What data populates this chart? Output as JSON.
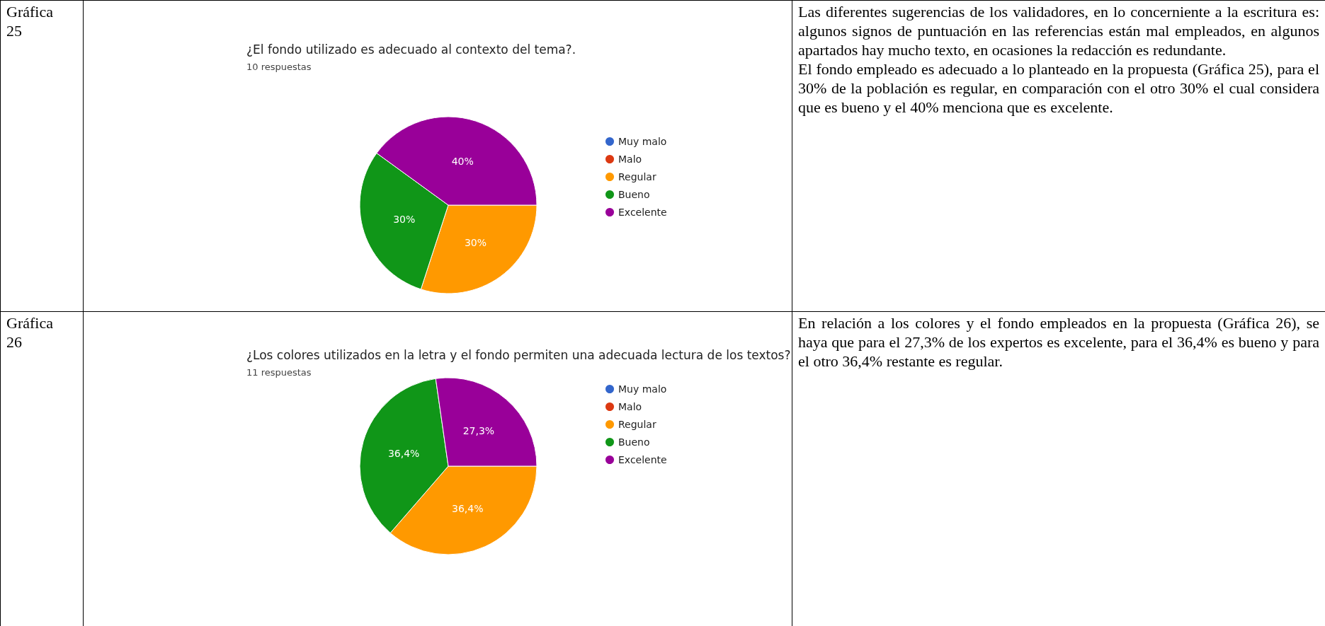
{
  "chart_data": [
    {
      "type": "other",
      "annotations": [
        "Gráfica 25"
      ]
    },
    {
      "type": "pie",
      "title": "¿El fondo utilizado es adecuado al contexto del tema?.",
      "subtitle": "10 respuestas",
      "categories": [
        "Muy malo",
        "Malo",
        "Regular",
        "Bueno",
        "Excelente"
      ],
      "values": [
        0,
        0,
        30,
        30,
        40
      ],
      "colors": [
        "#3366cc",
        "#dc3912",
        "#ff9900",
        "#109618",
        "#990099"
      ],
      "value_labels": [
        null,
        null,
        "30%",
        "30%",
        "40%"
      ],
      "legend": "right"
    },
    {
      "type": "other",
      "annotations": [
        "Las diferentes sugerencias de los validadores, en lo concerniente a la escritura es: algunos signos de puntuación en las referencias están mal empleados, en algunos apartados hay mucho texto, en ocasiones la redacción es redundante.",
        "El fondo empleado es adecuado a lo planteado en la propuesta (Gráfica 25), para el 30% de la población es regular, en comparación con el otro 30% el cual considera que es bueno y el 40% menciona que es excelente."
      ]
    },
    {
      "type": "other",
      "annotations": [
        "Gráfica 26"
      ]
    },
    {
      "type": "pie",
      "title": "¿Los colores utilizados en la letra y el fondo permiten una adecuada lectura de los textos?.",
      "subtitle": "11 respuestas",
      "categories": [
        "Muy malo",
        "Malo",
        "Regular",
        "Bueno",
        "Excelente"
      ],
      "values": [
        0,
        0,
        36.4,
        36.4,
        27.3
      ],
      "colors": [
        "#3366cc",
        "#dc3912",
        "#ff9900",
        "#109618",
        "#990099"
      ],
      "value_labels": [
        null,
        null,
        "36,4%",
        "36,4%",
        "27,3%"
      ],
      "legend": "right"
    },
    {
      "type": "other",
      "annotations": [
        "En relación a los colores y el fondo empleados en la propuesta (Gráfica 26), se haya que para el 27,3% de los expertos es excelente, para el 36,4% es bueno y para el otro 36,4% restante es regular."
      ]
    }
  ]
}
